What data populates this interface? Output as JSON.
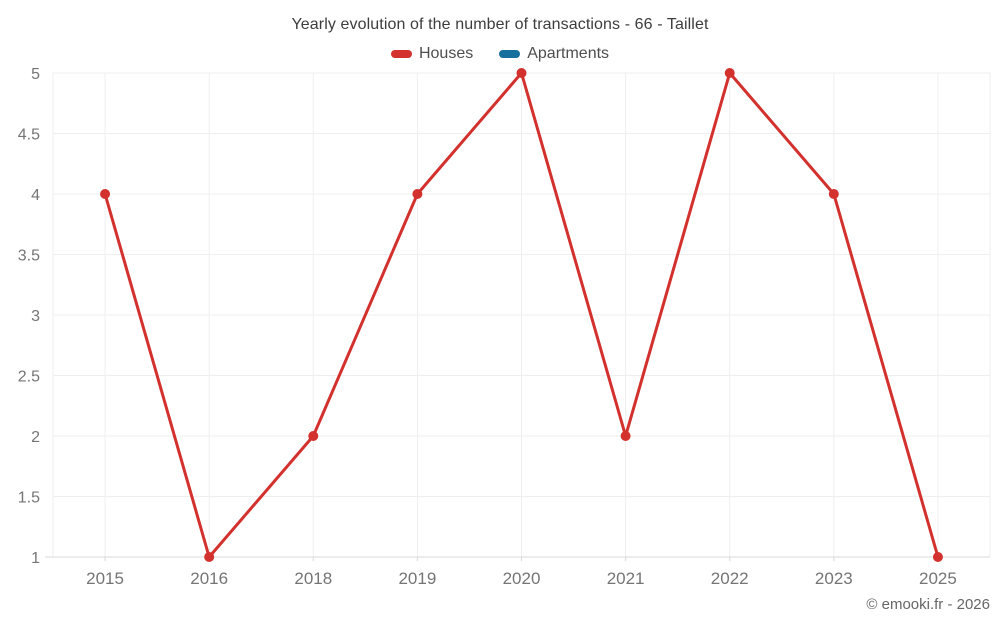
{
  "title": "Yearly evolution of the number of transactions - 66 - Taillet",
  "legend": {
    "items": [
      {
        "label": "Houses",
        "color": "#d2312e"
      },
      {
        "label": "Apartments",
        "color": "#16709e"
      }
    ]
  },
  "footer": {
    "copyright": "© emooki.fr - 2026"
  },
  "colors": {
    "background": "#ffffff",
    "grid": "#efefef",
    "axis": "#d9d9d9",
    "axis_text": "#757575",
    "title_text": "#3d3d3d",
    "legend_text": "#4e4e4e",
    "footer_text": "#666666",
    "houses": "#d2312e",
    "apartments": "#16709e"
  },
  "chart_data": {
    "type": "line",
    "title": "Yearly evolution of the number of transactions - 66 - Taillet",
    "categories": [
      "2015",
      "2016",
      "2018",
      "2019",
      "2020",
      "2021",
      "2022",
      "2023",
      "2025"
    ],
    "series": [
      {
        "name": "Houses",
        "color": "#d2312e",
        "values": [
          4,
          1,
          2,
          4,
          5,
          2,
          5,
          4,
          1
        ]
      },
      {
        "name": "Apartments",
        "color": "#16709e",
        "values": []
      }
    ],
    "xlabel": "",
    "ylabel": "",
    "ylim": [
      1,
      5
    ],
    "ytick_step": 0.5,
    "yticks": [
      1,
      1.5,
      2,
      2.5,
      3,
      3.5,
      4,
      4.5,
      5
    ],
    "grid": true,
    "legend_position": "top",
    "marker_radius": 5,
    "line_width": 3
  }
}
